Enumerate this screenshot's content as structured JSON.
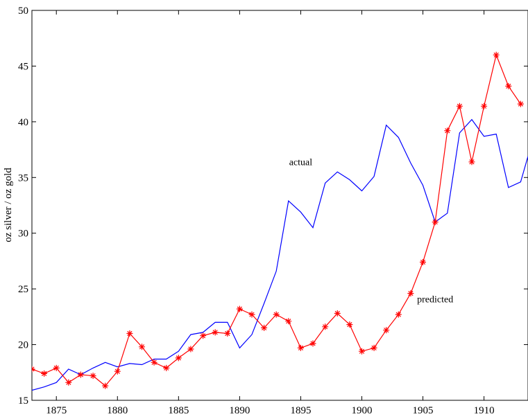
{
  "chart_data": {
    "type": "line",
    "title": "",
    "xlabel": "",
    "ylabel": "oz silver / oz gold",
    "xlim": [
      1873,
      1913.6
    ],
    "ylim": [
      15,
      50
    ],
    "xticks": [
      1875,
      1880,
      1885,
      1890,
      1895,
      1900,
      1905,
      1910
    ],
    "yticks": [
      15,
      20,
      25,
      30,
      35,
      40,
      45,
      50
    ],
    "grid": false,
    "legend": "none",
    "x": [
      1873,
      1874,
      1875,
      1876,
      1877,
      1878,
      1879,
      1880,
      1881,
      1882,
      1883,
      1884,
      1885,
      1886,
      1887,
      1888,
      1889,
      1890,
      1891,
      1892,
      1893,
      1894,
      1895,
      1896,
      1897,
      1898,
      1899,
      1900,
      1901,
      1902,
      1903,
      1904,
      1905,
      1906,
      1907,
      1908,
      1909,
      1910,
      1911,
      1912,
      1913
    ],
    "series": [
      {
        "color": "#0000ff",
        "marker": "none",
        "values": [
          15.9,
          16.2,
          16.6,
          17.8,
          17.3,
          17.9,
          18.4,
          18.0,
          18.3,
          18.2,
          18.7,
          18.7,
          19.4,
          20.9,
          21.1,
          22.0,
          22.0,
          19.7,
          20.9,
          23.7,
          26.6,
          32.9,
          31.9,
          30.5,
          34.5,
          35.5,
          34.8,
          33.8,
          35.1,
          39.7,
          38.6,
          36.3,
          34.3,
          31.0,
          31.8,
          39.0,
          40.2,
          38.7,
          38.9,
          34.1,
          34.6
        ]
      },
      {
        "color": "#ff0000",
        "marker": "asterisk",
        "values": [
          17.8,
          17.4,
          17.9,
          16.6,
          17.3,
          17.2,
          16.3,
          17.6,
          21.0,
          19.8,
          18.4,
          17.9,
          18.8,
          19.6,
          20.8,
          21.1,
          21.0,
          23.2,
          22.7,
          21.5,
          22.7,
          22.1,
          19.7,
          20.1,
          21.6,
          22.8,
          21.8,
          19.4,
          19.7,
          21.3,
          22.7,
          24.6,
          27.4,
          31.0,
          39.2,
          41.4,
          36.4,
          41.4,
          46.0,
          43.2,
          41.6
        ]
      }
    ],
    "line_extension": {
      "x": 1913.6,
      "actual_value": 36.9
    },
    "annotations": [
      {
        "text": "actual",
        "x": 1895.0,
        "y": 36.1
      },
      {
        "text": "predicted",
        "x": 1906.0,
        "y": 23.8
      }
    ]
  }
}
